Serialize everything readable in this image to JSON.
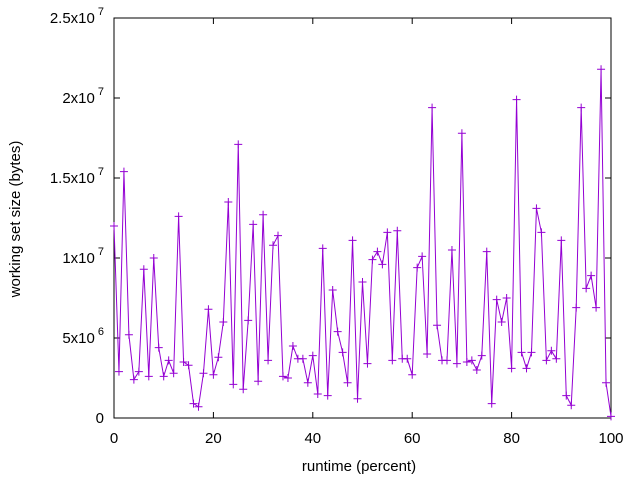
{
  "chart_data": {
    "type": "line",
    "title": "",
    "xlabel": "runtime (percent)",
    "ylabel": "working set size (bytes)",
    "xlim": [
      0,
      100
    ],
    "ylim": [
      0,
      25000000
    ],
    "grid": false,
    "legend": "none",
    "x_ticks": [
      {
        "value": 0,
        "label": "0"
      },
      {
        "value": 20,
        "label": "20"
      },
      {
        "value": 40,
        "label": "40"
      },
      {
        "value": 60,
        "label": "60"
      },
      {
        "value": 80,
        "label": "80"
      },
      {
        "value": 100,
        "label": "100"
      }
    ],
    "y_ticks": [
      {
        "value": 0,
        "mantissa": "0",
        "exponent": ""
      },
      {
        "value": 5000000,
        "mantissa": "5x10",
        "exponent": "6"
      },
      {
        "value": 10000000,
        "mantissa": "1x10",
        "exponent": "7"
      },
      {
        "value": 15000000,
        "mantissa": "1.5x10",
        "exponent": "7"
      },
      {
        "value": 20000000,
        "mantissa": "2x10",
        "exponent": "7"
      },
      {
        "value": 25000000,
        "mantissa": "2.5x10",
        "exponent": "7"
      }
    ],
    "series": [
      {
        "color": "#9400d3",
        "marker": "plus",
        "x": [
          0,
          1,
          2,
          3,
          4,
          5,
          6,
          7,
          8,
          9,
          10,
          11,
          12,
          13,
          14,
          15,
          16,
          17,
          18,
          19,
          20,
          21,
          22,
          23,
          24,
          25,
          26,
          27,
          28,
          29,
          30,
          31,
          32,
          33,
          34,
          35,
          36,
          37,
          38,
          39,
          40,
          41,
          42,
          43,
          44,
          45,
          46,
          47,
          48,
          49,
          50,
          51,
          52,
          53,
          54,
          55,
          56,
          57,
          58,
          59,
          60,
          61,
          62,
          63,
          64,
          65,
          66,
          67,
          68,
          69,
          70,
          71,
          72,
          73,
          74,
          75,
          76,
          77,
          78,
          79,
          80,
          81,
          82,
          83,
          84,
          85,
          86,
          87,
          88,
          89,
          90,
          91,
          92,
          93,
          94,
          95,
          96,
          97,
          98,
          99,
          100
        ],
        "y": [
          12000000,
          2900000,
          15400000,
          5200000,
          2400000,
          2900000,
          9300000,
          2600000,
          10000000,
          4400000,
          2600000,
          3600000,
          2800000,
          12600000,
          3500000,
          3300000,
          900000,
          700000,
          2800000,
          6800000,
          2700000,
          3800000,
          6000000,
          13500000,
          2100000,
          17100000,
          1800000,
          6100000,
          12100000,
          2300000,
          12700000,
          3600000,
          10800000,
          11400000,
          2600000,
          2500000,
          4500000,
          3700000,
          3700000,
          2200000,
          3900000,
          1500000,
          10600000,
          1400000,
          8000000,
          5400000,
          4100000,
          2200000,
          11100000,
          1200000,
          8500000,
          3400000,
          9900000,
          10400000,
          9600000,
          11600000,
          3600000,
          11700000,
          3700000,
          3700000,
          2700000,
          9400000,
          10100000,
          4000000,
          19400000,
          5800000,
          3600000,
          3600000,
          10500000,
          3400000,
          17800000,
          3500000,
          3600000,
          3000000,
          3900000,
          10400000,
          900000,
          7400000,
          6000000,
          7500000,
          3100000,
          19900000,
          4100000,
          3100000,
          4100000,
          13100000,
          11600000,
          3600000,
          4200000,
          3700000,
          11100000,
          1400000,
          800000,
          6900000,
          19400000,
          8100000,
          8900000,
          6900000,
          21800000,
          2200000,
          100000
        ]
      }
    ]
  }
}
